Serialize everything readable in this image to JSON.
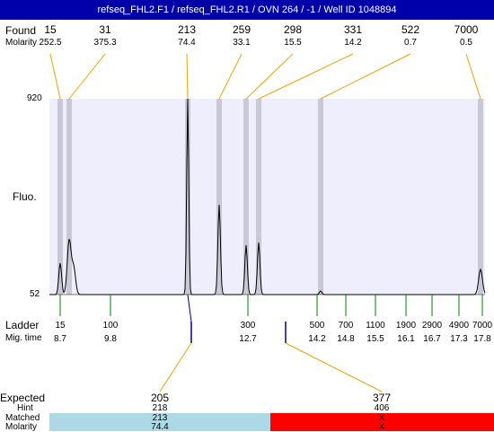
{
  "title": "refseq_FHL2.F1 / refseq_FHL2.R1 / OVN 264 / -1 / Well ID 1048894",
  "row_labels": {
    "found": "Found",
    "molarity": "Molarity",
    "fluo": "Fluo.",
    "ladder": "Ladder",
    "mig_time": "Mig. time",
    "expected": "Expected",
    "hint": "Hint",
    "matched": "Matched",
    "molarity_bottom": "Molarity"
  },
  "y_axis": {
    "max_label": "920",
    "min_label": "52"
  },
  "colors": {
    "title_bg": "#0000aa",
    "plot_bg": "#eeeefc",
    "band": "#c8c8d8",
    "found_line": "#f0a000",
    "ladder_tick": "#008000",
    "expected_tick": "#000080",
    "matched_ok": "#add8e6",
    "matched_fail": "#ff0000"
  },
  "found_peaks": [
    {
      "size": "15",
      "molarity": "252.5"
    },
    {
      "size": "31",
      "molarity": "375.3"
    },
    {
      "size": "213",
      "molarity": "74.4"
    },
    {
      "size": "259",
      "molarity": "33.1"
    },
    {
      "size": "298",
      "molarity": "15.5"
    },
    {
      "size": "331",
      "molarity": "14.2"
    },
    {
      "size": "522",
      "molarity": "0.7"
    },
    {
      "size": "7000",
      "molarity": "0.5"
    }
  ],
  "ladder": [
    {
      "size": "15",
      "time": "8.7"
    },
    {
      "size": "100",
      "time": "9.8"
    },
    {
      "size": "300",
      "time": "12.7"
    },
    {
      "size": "500",
      "time": "14.2"
    },
    {
      "size": "700",
      "time": "14.8"
    },
    {
      "size": "1100",
      "time": "15.5"
    },
    {
      "size": "1900",
      "time": "16.1"
    },
    {
      "size": "2900",
      "time": "16.7"
    },
    {
      "size": "4900",
      "time": "17.3"
    },
    {
      "size": "7000",
      "time": "17.8"
    }
  ],
  "expected": [
    {
      "size": "205",
      "hint": "218",
      "matched": "213",
      "molarity": "74.4",
      "status": "matched"
    },
    {
      "size": "377",
      "hint": "406",
      "matched": "X",
      "molarity": "X",
      "status": "not-matched"
    }
  ]
}
